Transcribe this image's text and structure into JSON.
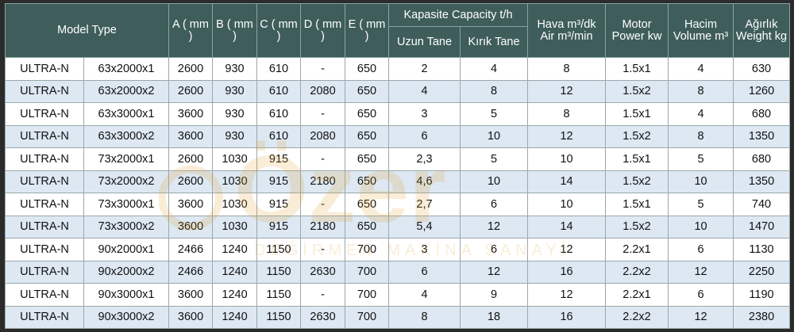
{
  "table": {
    "headers": {
      "model_type": "Model Type",
      "a": "A ( mm )",
      "b": "B ( mm )",
      "c": "C ( mm )",
      "d": "D ( mm )",
      "e": "E ( mm )",
      "capacity": "Kapasite Capacity t/h",
      "uzun_tane": "Uzun Tane",
      "kirik_tane": "Kırık Tane",
      "air": "Hava m³/dk Air m³/min",
      "motor": "Motor Power kw",
      "volume": "Hacim Volume m³",
      "weight": "Ağırlık Weight kg"
    },
    "rows": [
      {
        "model": "ULTRA-N",
        "type": "63x2000x1",
        "a": "2600",
        "b": "930",
        "c": "610",
        "d": "-",
        "e": "650",
        "uzun": "2",
        "kirik": "4",
        "air": "8",
        "motor": "1.5x1",
        "volume": "4",
        "weight": "630"
      },
      {
        "model": "ULTRA-N",
        "type": "63x2000x2",
        "a": "2600",
        "b": "930",
        "c": "610",
        "d": "2080",
        "e": "650",
        "uzun": "4",
        "kirik": "8",
        "air": "12",
        "motor": "1.5x2",
        "volume": "8",
        "weight": "1260"
      },
      {
        "model": "ULTRA-N",
        "type": "63x3000x1",
        "a": "3600",
        "b": "930",
        "c": "610",
        "d": "-",
        "e": "650",
        "uzun": "3",
        "kirik": "5",
        "air": "8",
        "motor": "1.5x1",
        "volume": "4",
        "weight": "680"
      },
      {
        "model": "ULTRA-N",
        "type": "63x3000x2",
        "a": "3600",
        "b": "930",
        "c": "610",
        "d": "2080",
        "e": "650",
        "uzun": "6",
        "kirik": "10",
        "air": "12",
        "motor": "1.5x2",
        "volume": "8",
        "weight": "1350"
      },
      {
        "model": "ULTRA-N",
        "type": "73x2000x1",
        "a": "2600",
        "b": "1030",
        "c": "915",
        "d": "-",
        "e": "650",
        "uzun": "2,3",
        "kirik": "5",
        "air": "10",
        "motor": "1.5x1",
        "volume": "5",
        "weight": "680"
      },
      {
        "model": "ULTRA-N",
        "type": "73x2000x2",
        "a": "2600",
        "b": "1030",
        "c": "915",
        "d": "2180",
        "e": "650",
        "uzun": "4,6",
        "kirik": "10",
        "air": "14",
        "motor": "1.5x2",
        "volume": "10",
        "weight": "1350"
      },
      {
        "model": "ULTRA-N",
        "type": "73x3000x1",
        "a": "3600",
        "b": "1030",
        "c": "915",
        "d": "-",
        "e": "650",
        "uzun": "2,7",
        "kirik": "6",
        "air": "10",
        "motor": "1.5x1",
        "volume": "5",
        "weight": "740"
      },
      {
        "model": "ULTRA-N",
        "type": "73x3000x2",
        "a": "3600",
        "b": "1030",
        "c": "915",
        "d": "2180",
        "e": "650",
        "uzun": "5,4",
        "kirik": "12",
        "air": "14",
        "motor": "1.5x2",
        "volume": "10",
        "weight": "1470"
      },
      {
        "model": "ULTRA-N",
        "type": "90x2000x1",
        "a": "2466",
        "b": "1240",
        "c": "1150",
        "d": "-",
        "e": "700",
        "uzun": "3",
        "kirik": "6",
        "air": "12",
        "motor": "2.2x1",
        "volume": "6",
        "weight": "1130"
      },
      {
        "model": "ULTRA-N",
        "type": "90x2000x2",
        "a": "2466",
        "b": "1240",
        "c": "1150",
        "d": "2630",
        "e": "700",
        "uzun": "6",
        "kirik": "12",
        "air": "16",
        "motor": "2.2x2",
        "volume": "12",
        "weight": "2250"
      },
      {
        "model": "ULTRA-N",
        "type": "90x3000x1",
        "a": "3600",
        "b": "1240",
        "c": "1150",
        "d": "-",
        "e": "700",
        "uzun": "4",
        "kirik": "9",
        "air": "12",
        "motor": "2.2x1",
        "volume": "6",
        "weight": "1190"
      },
      {
        "model": "ULTRA-N",
        "type": "90x3000x2",
        "a": "3600",
        "b": "1240",
        "c": "1150",
        "d": "2630",
        "e": "700",
        "uzun": "8",
        "kirik": "18",
        "air": "16",
        "motor": "2.2x2",
        "volume": "12",
        "weight": "2380"
      }
    ]
  },
  "watermark": {
    "brand": "Özer",
    "tagline": "DEĞİRMEN MAKİNA SANAYİ"
  },
  "colors": {
    "header_bg": "#3e5d5b",
    "row_odd": "#ffffff",
    "row_even": "#dde8f3",
    "watermark": "#e0a028"
  }
}
